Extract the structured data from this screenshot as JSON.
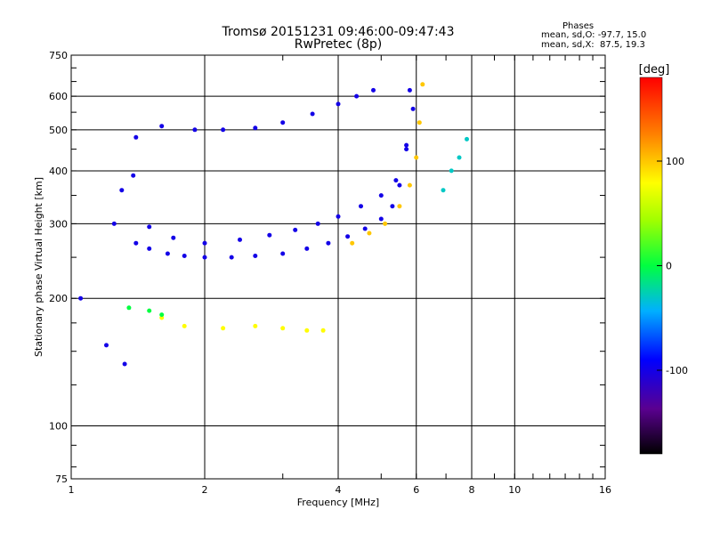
{
  "title": "Tromsø 20151231 09:46:00-09:47:43",
  "subtitle": "RwPretec (8p)",
  "phases": {
    "heading": "Phases",
    "line_o": "mean, sd,O: -97.7, 15.0",
    "line_x": "mean, sd,X:  87.5, 19.3"
  },
  "chart_data": {
    "type": "scatter",
    "title": "Tromsø 20151231 09:46:00-09:47:43",
    "subtitle": "RwPretec (8p)",
    "xlabel": "Frequency [MHz]",
    "ylabel": "Stationary phase Virtual Height [km]",
    "x_scale": "log",
    "y_scale": "log",
    "xlim": [
      1,
      16
    ],
    "ylim": [
      75,
      750
    ],
    "x_ticks": [
      1,
      2,
      4,
      6,
      8,
      10,
      16
    ],
    "x_tick_labels": [
      "1",
      "2",
      "4",
      "6",
      "8",
      "10",
      "16"
    ],
    "y_ticks": [
      75,
      100,
      200,
      300,
      400,
      500,
      600,
      750
    ],
    "y_tick_labels": [
      "75",
      "100",
      "200",
      "300",
      "400",
      "500",
      "600",
      "750"
    ],
    "grid": true,
    "colorbar": {
      "label": "[deg]",
      "range": [
        -180,
        180
      ],
      "ticks": [
        100,
        0,
        -100
      ],
      "tick_labels": [
        "100",
        "0",
        "-100"
      ]
    },
    "traces": [
      {
        "name": "",
        "phase": -100,
        "x": [
          1.05,
          1.2,
          1.32,
          1.4,
          1.5,
          1.65,
          1.8,
          2.0,
          2.3,
          2.6,
          3.0,
          3.4,
          3.8,
          4.2,
          4.6,
          5.0,
          5.3,
          5.5,
          5.7,
          5.8
        ],
        "y": [
          200,
          155,
          140,
          270,
          262,
          255,
          252,
          250,
          250,
          252,
          255,
          262,
          270,
          280,
          292,
          308,
          330,
          370,
          450,
          620
        ]
      },
      {
        "name": "",
        "phase": -100,
        "x": [
          1.25,
          1.3,
          1.38,
          1.5,
          1.7,
          2.0,
          2.4,
          2.8,
          3.2,
          3.6,
          4.0,
          4.5,
          5.0,
          5.4,
          5.7,
          5.9
        ],
        "y": [
          300,
          360,
          390,
          295,
          278,
          270,
          275,
          282,
          290,
          300,
          312,
          330,
          350,
          380,
          460,
          560
        ]
      },
      {
        "name": "",
        "phase": -100,
        "x": [
          1.4,
          1.6,
          1.9,
          2.2,
          2.6,
          3.0,
          3.5,
          4.0,
          4.4,
          4.8
        ],
        "y": [
          480,
          510,
          500,
          500,
          505,
          520,
          545,
          575,
          600,
          620
        ]
      },
      {
        "name": "",
        "phase": 100,
        "x": [
          4.3,
          4.7,
          5.1,
          5.5,
          5.8,
          6.0,
          6.1,
          6.2
        ],
        "y": [
          270,
          285,
          300,
          330,
          370,
          430,
          520,
          640
        ]
      },
      {
        "name": "",
        "phase": 80,
        "x": [
          1.6,
          1.8,
          2.2,
          2.6,
          3.0,
          3.4,
          3.7
        ],
        "y": [
          180,
          172,
          170,
          172,
          170,
          168,
          168
        ]
      },
      {
        "name": "",
        "phase": 0,
        "x": [
          1.35,
          1.5,
          1.6
        ],
        "y": [
          190,
          187,
          183
        ]
      },
      {
        "name": "",
        "phase": -30,
        "x": [
          6.9,
          7.2,
          7.5,
          7.8
        ],
        "y": [
          360,
          400,
          430,
          475
        ]
      }
    ]
  }
}
